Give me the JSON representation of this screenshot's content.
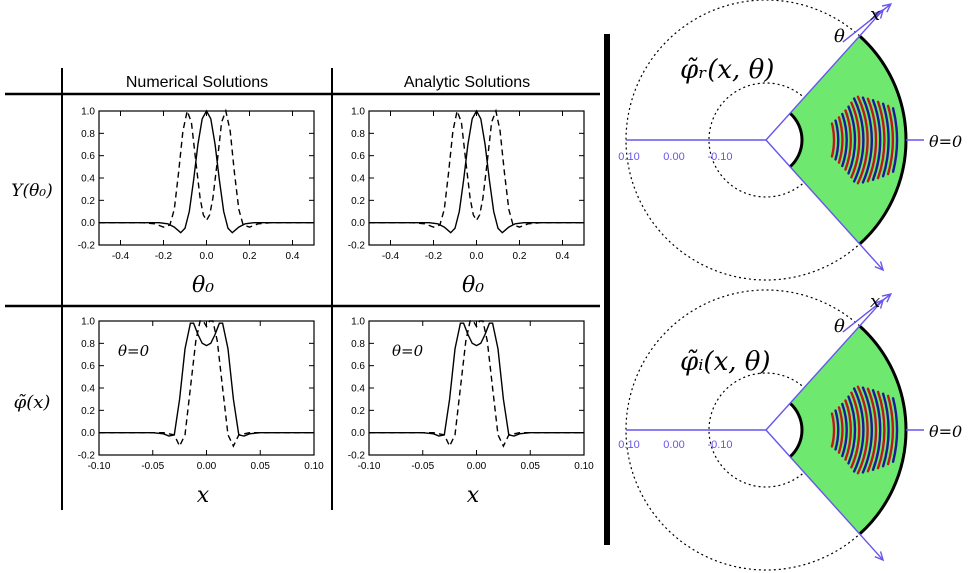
{
  "headers": {
    "numerical": "Numerical Solutions",
    "analytic": "Analytic Solutions"
  },
  "row_labels": {
    "top": "Y(θ₀)",
    "bottom": "φ̃(x)"
  },
  "x_axis_labels": {
    "top": "θ₀",
    "bottom": "x"
  },
  "panel_annotation": "θ=0",
  "fan_labels": {
    "real": "φ̃ᵣ(x, θ)",
    "imag": "φ̃ᵢ(x, θ)",
    "theta": "θ",
    "x": "x",
    "theta_zero": "θ=0",
    "ticks": [
      "0.10",
      "0.00",
      "-0.10"
    ]
  },
  "colors": {
    "fan_fill": "#6fe86f",
    "ray": "#6655ee",
    "stripe_red": "#c01818",
    "stripe_blue": "#1a1a9a"
  },
  "chart_data": [
    {
      "type": "line",
      "panel": "numerical-top",
      "xlim": [
        -0.5,
        0.5
      ],
      "ylim": [
        -0.2,
        1.0
      ],
      "xticks": [
        "-0.4",
        "-0.2",
        "0.0",
        "0.2",
        "0.4"
      ],
      "yticks": [
        "-0.2",
        "0.0",
        "0.2",
        "0.4",
        "0.6",
        "0.8",
        "1.0"
      ],
      "series": [
        {
          "style": "solid",
          "x": [
            -0.5,
            -0.3,
            -0.22,
            -0.18,
            -0.15,
            -0.12,
            -0.1,
            -0.08,
            -0.06,
            -0.04,
            -0.02,
            0,
            0.02,
            0.04,
            0.06,
            0.08,
            0.1,
            0.12,
            0.15,
            0.18,
            0.22,
            0.3,
            0.5
          ],
          "y": [
            0,
            0,
            0,
            -0.01,
            -0.04,
            -0.09,
            -0.05,
            0.1,
            0.38,
            0.7,
            0.93,
            1.0,
            0.93,
            0.7,
            0.38,
            0.1,
            -0.05,
            -0.09,
            -0.04,
            -0.01,
            0,
            0,
            0
          ]
        },
        {
          "style": "dashed",
          "x": [
            -0.5,
            -0.3,
            -0.24,
            -0.2,
            -0.17,
            -0.15,
            -0.13,
            -0.11,
            -0.09,
            -0.07,
            -0.05,
            -0.03,
            -0.015,
            0,
            0.015,
            0.03,
            0.05,
            0.07,
            0.09,
            0.11,
            0.13,
            0.15,
            0.17,
            0.2,
            0.24,
            0.3,
            0.5
          ],
          "y": [
            0,
            0,
            -0.01,
            -0.04,
            -0.02,
            0.12,
            0.45,
            0.82,
            1.0,
            0.9,
            0.55,
            0.22,
            0.07,
            0.02,
            0.07,
            0.22,
            0.55,
            0.9,
            1.0,
            0.82,
            0.45,
            0.12,
            -0.02,
            -0.04,
            -0.01,
            0,
            0
          ]
        }
      ]
    },
    {
      "type": "line",
      "panel": "analytic-top",
      "xlim": [
        -0.5,
        0.5
      ],
      "ylim": [
        -0.2,
        1.0
      ],
      "xticks": [
        "-0.4",
        "-0.2",
        "0.0",
        "0.2",
        "0.4"
      ],
      "yticks": [
        "-0.2",
        "0.0",
        "0.2",
        "0.4",
        "0.6",
        "0.8",
        "1.0"
      ],
      "series": [
        {
          "style": "solid",
          "x": [
            -0.5,
            -0.3,
            -0.22,
            -0.18,
            -0.15,
            -0.12,
            -0.1,
            -0.08,
            -0.06,
            -0.04,
            -0.02,
            0,
            0.02,
            0.04,
            0.06,
            0.08,
            0.1,
            0.12,
            0.15,
            0.18,
            0.22,
            0.3,
            0.5
          ],
          "y": [
            0,
            0,
            0,
            -0.01,
            -0.04,
            -0.09,
            -0.05,
            0.1,
            0.38,
            0.7,
            0.93,
            1.0,
            0.93,
            0.7,
            0.38,
            0.1,
            -0.05,
            -0.09,
            -0.04,
            -0.01,
            0,
            0,
            0
          ]
        },
        {
          "style": "dashed",
          "x": [
            -0.5,
            -0.3,
            -0.24,
            -0.2,
            -0.17,
            -0.15,
            -0.13,
            -0.11,
            -0.09,
            -0.07,
            -0.05,
            -0.03,
            -0.015,
            0,
            0.015,
            0.03,
            0.05,
            0.07,
            0.09,
            0.11,
            0.13,
            0.15,
            0.17,
            0.2,
            0.24,
            0.3,
            0.5
          ],
          "y": [
            0,
            0,
            -0.01,
            -0.04,
            -0.02,
            0.12,
            0.45,
            0.82,
            1.0,
            0.9,
            0.55,
            0.22,
            0.07,
            0.02,
            0.07,
            0.22,
            0.55,
            0.9,
            1.0,
            0.82,
            0.45,
            0.12,
            -0.02,
            -0.04,
            -0.01,
            0,
            0
          ]
        }
      ]
    },
    {
      "type": "line",
      "panel": "numerical-bottom",
      "xlim": [
        -0.1,
        0.1
      ],
      "ylim": [
        -0.2,
        1.0
      ],
      "xticks": [
        "-0.10",
        "-0.05",
        "0.00",
        "0.05",
        "0.10"
      ],
      "yticks": [
        "-0.2",
        "0.0",
        "0.2",
        "0.4",
        "0.6",
        "0.8",
        "1.0"
      ],
      "series": [
        {
          "style": "solid",
          "x": [
            -0.1,
            -0.05,
            -0.04,
            -0.035,
            -0.03,
            -0.025,
            -0.02,
            -0.015,
            -0.012,
            -0.008,
            -0.004,
            0,
            0.004,
            0.008,
            0.012,
            0.015,
            0.02,
            0.025,
            0.03,
            0.035,
            0.04,
            0.05,
            0.1
          ],
          "y": [
            0,
            0,
            -0.01,
            -0.03,
            -0.02,
            0.3,
            0.75,
            0.98,
            0.98,
            0.88,
            0.8,
            0.78,
            0.8,
            0.88,
            0.98,
            0.98,
            0.75,
            0.3,
            -0.02,
            -0.03,
            -0.01,
            0,
            0
          ]
        },
        {
          "style": "dashed",
          "x": [
            -0.1,
            -0.04,
            -0.03,
            -0.025,
            -0.02,
            -0.015,
            -0.01,
            -0.006,
            -0.003,
            0,
            0.003,
            0.006,
            0.01,
            0.015,
            0.02,
            0.025,
            0.03,
            0.04,
            0.1
          ],
          "y": [
            0,
            0,
            -0.02,
            -0.12,
            -0.02,
            0.4,
            0.82,
            1.0,
            1.0,
            0.95,
            1.0,
            1.0,
            0.82,
            0.4,
            -0.02,
            -0.12,
            -0.02,
            0,
            0
          ]
        }
      ]
    },
    {
      "type": "line",
      "panel": "analytic-bottom",
      "xlim": [
        -0.1,
        0.1
      ],
      "ylim": [
        -0.2,
        1.0
      ],
      "xticks": [
        "-0.10",
        "-0.05",
        "0.00",
        "0.05",
        "0.10"
      ],
      "yticks": [
        "-0.2",
        "0.0",
        "0.2",
        "0.4",
        "0.6",
        "0.8",
        "1.0"
      ],
      "series": [
        {
          "style": "solid",
          "x": [
            -0.1,
            -0.05,
            -0.04,
            -0.035,
            -0.03,
            -0.025,
            -0.02,
            -0.015,
            -0.012,
            -0.008,
            -0.004,
            0,
            0.004,
            0.008,
            0.012,
            0.015,
            0.02,
            0.025,
            0.03,
            0.035,
            0.04,
            0.05,
            0.1
          ],
          "y": [
            0,
            0,
            -0.01,
            -0.03,
            -0.02,
            0.3,
            0.75,
            0.98,
            0.98,
            0.88,
            0.8,
            0.78,
            0.8,
            0.88,
            0.98,
            0.98,
            0.75,
            0.3,
            -0.02,
            -0.03,
            -0.01,
            0,
            0
          ]
        },
        {
          "style": "dashed",
          "x": [
            -0.1,
            -0.04,
            -0.03,
            -0.025,
            -0.02,
            -0.015,
            -0.01,
            -0.006,
            -0.003,
            0,
            0.003,
            0.006,
            0.01,
            0.015,
            0.02,
            0.025,
            0.03,
            0.04,
            0.1
          ],
          "y": [
            0,
            0,
            -0.02,
            -0.12,
            -0.02,
            0.4,
            0.82,
            1.0,
            1.0,
            0.95,
            1.0,
            1.0,
            0.82,
            0.4,
            -0.02,
            -0.12,
            -0.02,
            0,
            0
          ]
        }
      ]
    }
  ]
}
